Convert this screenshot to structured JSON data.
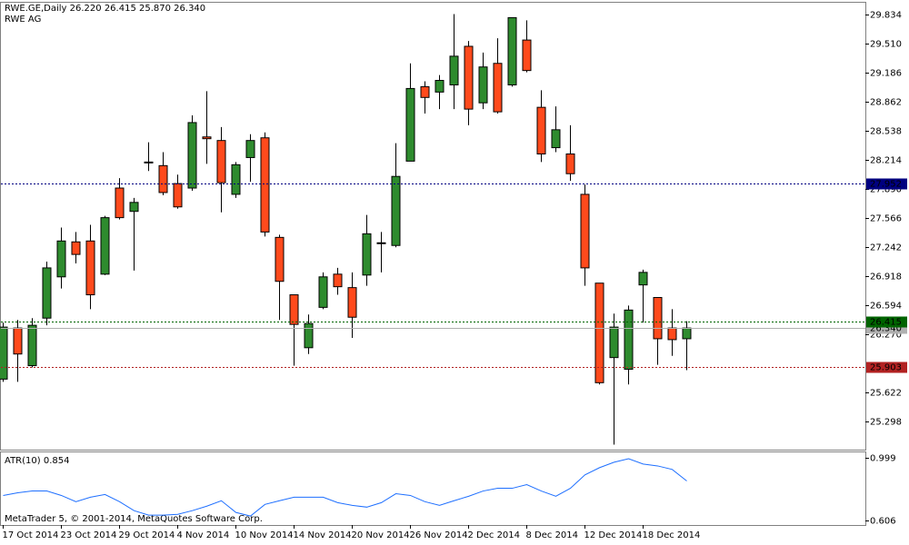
{
  "header": {
    "title": "RWE.GE,Daily  26.220 26.415 25.870 26.340",
    "subtitle": "RWE AG",
    "watermark": "MetaTrader 5, © 2001-2014, MetaQuotes Software Corp."
  },
  "chart_data": [
    {
      "type": "candlestick",
      "categories": [
        "17 Oct 2014",
        null,
        null,
        null,
        "23 Oct 2014",
        null,
        null,
        null,
        "29 Oct 2014",
        null,
        null,
        null,
        "4 Nov 2014",
        null,
        null,
        null,
        "10 Nov 2014",
        null,
        null,
        null,
        "14 Nov 2014",
        null,
        null,
        null,
        "20 Nov 2014",
        null,
        null,
        null,
        "26 Nov 2014",
        null,
        null,
        null,
        "2 Dec 2014",
        null,
        null,
        null,
        "8 Dec 2014",
        null,
        null,
        null,
        "12 Dec 2014",
        null,
        null,
        null,
        "18 Dec 2014",
        null,
        null,
        null
      ],
      "open": [
        25.77,
        26.34,
        25.92,
        26.45,
        26.91,
        27.3,
        27.31,
        26.94,
        27.9,
        27.64,
        28.18,
        28.15,
        27.95,
        27.9,
        28.47,
        28.43,
        27.83,
        28.24,
        28.46,
        27.35,
        26.71,
        26.12,
        26.57,
        26.94,
        26.79,
        26.93,
        27.29,
        27.26,
        28.2,
        29.03,
        28.97,
        29.05,
        29.48,
        28.85,
        29.29,
        29.05,
        29.55,
        28.8,
        28.35,
        28.28,
        27.83,
        26.84,
        26.01,
        25.88,
        26.82,
        26.68,
        26.34,
        26.22
      ],
      "high": [
        26.4,
        26.43,
        26.45,
        27.08,
        27.46,
        27.41,
        27.49,
        27.59,
        28.01,
        27.79,
        28.41,
        28.3,
        28.05,
        28.71,
        28.98,
        28.58,
        28.19,
        28.5,
        28.52,
        27.38,
        26.71,
        26.49,
        26.96,
        27.01,
        26.96,
        27.6,
        27.41,
        28.4,
        29.29,
        29.09,
        29.16,
        29.84,
        29.54,
        29.41,
        29.57,
        29.8,
        29.77,
        28.99,
        28.81,
        28.6,
        27.94,
        26.84,
        26.5,
        26.59,
        26.99,
        26.68,
        26.55,
        26.415
      ],
      "low": [
        25.74,
        25.74,
        25.9,
        26.37,
        26.78,
        27.06,
        26.55,
        26.93,
        27.55,
        26.98,
        28.09,
        27.82,
        27.67,
        27.87,
        28.17,
        27.63,
        27.79,
        27.97,
        27.36,
        26.43,
        25.92,
        26.05,
        26.55,
        26.71,
        26.23,
        26.81,
        26.96,
        27.24,
        28.2,
        28.73,
        28.78,
        28.78,
        28.6,
        28.78,
        28.73,
        29.03,
        29.19,
        28.19,
        28.3,
        27.98,
        26.81,
        25.71,
        25.04,
        25.71,
        26.4,
        25.93,
        26.03,
        25.87
      ],
      "close": [
        26.35,
        26.05,
        26.37,
        27.01,
        27.31,
        27.16,
        26.71,
        27.57,
        27.57,
        27.74,
        28.19,
        27.85,
        27.69,
        28.63,
        28.45,
        27.96,
        28.16,
        28.43,
        27.41,
        26.86,
        26.38,
        26.39,
        26.91,
        26.8,
        26.46,
        27.39,
        27.28,
        28.03,
        29.01,
        28.91,
        29.1,
        29.37,
        28.78,
        29.25,
        28.75,
        29.8,
        29.21,
        28.28,
        28.55,
        28.06,
        27.01,
        25.73,
        26.35,
        26.54,
        26.96,
        26.22,
        26.21,
        26.34
      ],
      "up_color": "#2e8b2e",
      "down_color": "#ff4a1c",
      "ylim": [
        24.984,
        29.966
      ],
      "yticks": [
        25.298,
        25.622,
        {
          "value": 26.27,
          "label": "26.270"
        },
        26.594,
        26.918,
        27.242,
        27.566,
        {
          "value": 27.89,
          "label": "27.890"
        },
        28.214,
        28.538,
        28.862,
        29.186,
        {
          "value": 29.51,
          "label": "29.510"
        },
        29.834
      ],
      "levels": [
        {
          "value": 27.952,
          "color": "#000080",
          "style": "dotted"
        },
        {
          "value": 26.34,
          "label": "26.340",
          "color": "#b0b0b0",
          "style": "solid"
        },
        {
          "value": 26.415,
          "color": "#006400",
          "style": "dotted"
        },
        {
          "value": 25.903,
          "color": "#b22222",
          "style": "dotted"
        }
      ]
    },
    {
      "type": "line",
      "title": "ATR(10) 0.854",
      "color": "#1e6fff",
      "values": [
        0.763,
        0.78,
        0.791,
        0.791,
        0.763,
        0.724,
        0.752,
        0.769,
        0.724,
        0.668,
        0.64,
        0.64,
        0.645,
        0.668,
        0.696,
        0.73,
        0.657,
        0.634,
        0.707,
        0.73,
        0.752,
        0.752,
        0.752,
        0.718,
        0.701,
        0.69,
        0.718,
        0.774,
        0.763,
        0.724,
        0.701,
        0.73,
        0.758,
        0.791,
        0.808,
        0.808,
        0.831,
        0.791,
        0.758,
        0.808,
        0.892,
        0.937,
        0.971,
        0.993,
        0.96,
        0.948,
        0.926,
        0.854
      ],
      "ylim": [
        0.578,
        1.033
      ],
      "yticks": [
        0.999,
        0.606
      ]
    }
  ]
}
